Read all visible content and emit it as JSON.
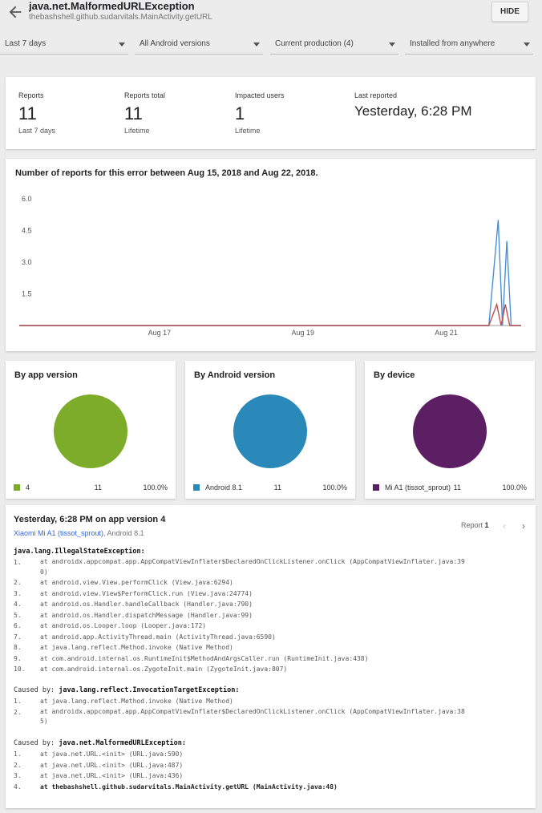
{
  "header": {
    "title": "java.net.MalformedURLException",
    "subtitle": "thebashshell.github.sudarvitals.MainActivity.getURL",
    "hide_label": "HIDE"
  },
  "filters": [
    {
      "label": "Last 7 days"
    },
    {
      "label": "All Android versions"
    },
    {
      "label": "Current production (4)"
    },
    {
      "label": "Installed from anywhere"
    }
  ],
  "stats": [
    {
      "label": "Reports",
      "value": "11",
      "sub": "Last 7 days"
    },
    {
      "label": "Reports total",
      "value": "11",
      "sub": "Lifetime"
    },
    {
      "label": "Impacted users",
      "value": "1",
      "sub": "Lifetime"
    },
    {
      "label": "Last reported",
      "value": "Yesterday, 6:28 PM"
    }
  ],
  "chart": {
    "title": "Number of reports for this error between Aug 15, 2018 and Aug 22, 2018.",
    "y_ticks": [
      "6.0",
      "4.5",
      "3.0",
      "1.5"
    ],
    "x_ticks": [
      "Aug 17",
      "Aug 19",
      "Aug 21"
    ]
  },
  "chart_data": {
    "type": "line",
    "title": "Number of reports for this error between Aug 15, 2018 and Aug 22, 2018.",
    "ylim": [
      0,
      6
    ],
    "y_ticks": [
      1.5,
      3.0,
      4.5,
      6.0
    ],
    "x_ticks": [
      "Aug 17",
      "Aug 19",
      "Aug 21"
    ],
    "x_range_days": [
      0,
      7
    ],
    "series": [
      {
        "color": "#4a90d9",
        "points": [
          [
            0,
            0
          ],
          [
            6.55,
            0
          ],
          [
            6.68,
            5.0
          ],
          [
            6.74,
            0
          ],
          [
            6.8,
            4.0
          ],
          [
            6.86,
            0
          ],
          [
            7,
            0
          ]
        ]
      },
      {
        "color": "#c0504d",
        "points": [
          [
            0,
            0
          ],
          [
            6.55,
            0
          ],
          [
            6.66,
            1.0
          ],
          [
            6.72,
            0
          ],
          [
            6.78,
            1.0
          ],
          [
            6.84,
            0
          ],
          [
            7,
            0
          ]
        ]
      }
    ],
    "grid": false,
    "legend": "none"
  },
  "breakdowns": [
    {
      "title": "By app version",
      "color": "#7cac29",
      "item": "4",
      "count": "11",
      "percent": "100.0%"
    },
    {
      "title": "By Android version",
      "color": "#2a89b9",
      "item": "Android 8.1",
      "count": "11",
      "percent": "100.0%"
    },
    {
      "title": "By device",
      "color": "#5c1f63",
      "item": "Mi A1 (tissot_sprout)",
      "count": "11",
      "percent": "100.0%"
    }
  ],
  "report": {
    "title": "Yesterday, 6:28 PM on app version 4",
    "device": "Xiaomi Mi A1 (tissot_sprout)",
    "os": ", Android 8.1",
    "nav_label": "Report",
    "nav_num": "1",
    "prev_icon": "‹",
    "next_icon": "›",
    "blocks": [
      {
        "prefix": "",
        "exception": "java.lang.IllegalStateException:",
        "frames": [
          {
            "n": "1.",
            "t": "at androidx.appcompat.app.AppCompatViewInflater$DeclaredOnClickListener.onClick (AppCompatViewInflater.java:39\n0)"
          },
          {
            "n": "2.",
            "t": "at android.view.View.performClick (View.java:6294)"
          },
          {
            "n": "3.",
            "t": "at android.view.View$PerformClick.run (View.java:24774)"
          },
          {
            "n": "4.",
            "t": "at android.os.Handler.handleCallback (Handler.java:790)"
          },
          {
            "n": "5.",
            "t": "at android.os.Handler.dispatchMessage (Handler.java:99)"
          },
          {
            "n": "6.",
            "t": "at android.os.Looper.loop (Looper.java:172)"
          },
          {
            "n": "7.",
            "t": "at android.app.ActivityThread.main (ActivityThread.java:6590)"
          },
          {
            "n": "8.",
            "t": "at java.lang.reflect.Method.invoke (Native Method)"
          },
          {
            "n": "9.",
            "t": "at com.android.internal.os.RuntimeInit$MethodAndArgsCaller.run (RuntimeInit.java:438)"
          },
          {
            "n": "10.",
            "t": "at com.android.internal.os.ZygoteInit.main (ZygoteInit.java:807)"
          }
        ]
      },
      {
        "prefix": "Caused by: ",
        "exception": "java.lang.reflect.InvocationTargetException:",
        "frames": [
          {
            "n": "1.",
            "t": "at java.lang.reflect.Method.invoke (Native Method)"
          },
          {
            "n": "2.",
            "t": "at androidx.appcompat.app.AppCompatViewInflater$DeclaredOnClickListener.onClick (AppCompatViewInflater.java:38\n5)"
          }
        ]
      },
      {
        "prefix": "Caused by: ",
        "exception": "java.net.MalformedURLException:",
        "frames": [
          {
            "n": "1.",
            "t": "at java.net.URL.<init> (URL.java:590)"
          },
          {
            "n": "2.",
            "t": "at java.net.URL.<init> (URL.java:487)"
          },
          {
            "n": "3.",
            "t": "at java.net.URL.<init> (URL.java:436)"
          },
          {
            "n": "4.",
            "t": "at thebashshell.github.sudarvitals.MainActivity.getURL (MainActivity.java:48)",
            "highlight": true
          }
        ]
      }
    ]
  }
}
